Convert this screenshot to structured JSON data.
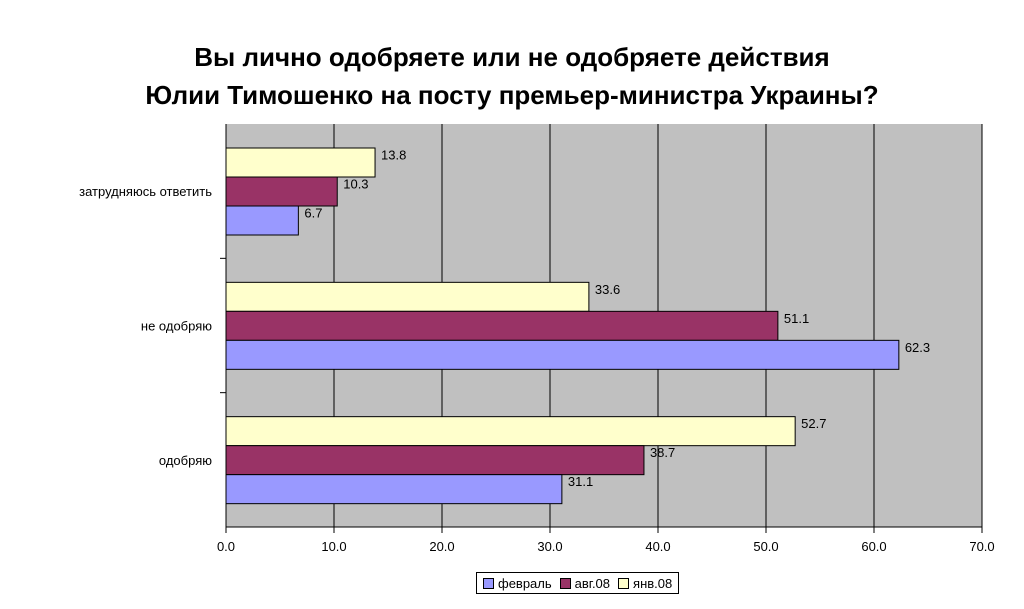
{
  "chart_data": {
    "type": "bar",
    "orientation": "horizontal",
    "title_lines": [
      "Вы лично одобряете или не одобряете действия",
      "Юлии Тимошенко на посту премьер-министра Украины?"
    ],
    "categories": [
      "затрудняюсь ответить",
      "не одобряю",
      "одобряю"
    ],
    "series": [
      {
        "name": "янв.08",
        "color": "#ffffcc",
        "values": [
          13.8,
          33.6,
          52.7
        ],
        "labels": [
          "13.8",
          "33.6",
          "52.7"
        ]
      },
      {
        "name": "авг.08",
        "color": "#993366",
        "values": [
          10.3,
          51.1,
          38.7
        ],
        "labels": [
          "10.3",
          "51.1",
          "38.7"
        ]
      },
      {
        "name": "февраль",
        "color": "#9999ff",
        "values": [
          6.7,
          62.3,
          31.1
        ],
        "labels": [
          "6.7",
          "62.3",
          "31.1"
        ]
      }
    ],
    "xlim": [
      0,
      70
    ],
    "xticks": [
      0,
      10,
      20,
      30,
      40,
      50,
      60,
      70
    ],
    "xtick_labels": [
      "0.0",
      "10.0",
      "20.0",
      "30.0",
      "40.0",
      "50.0",
      "60.0",
      "70.0"
    ],
    "plot_background": "#c0c0c0",
    "grid": true,
    "legend_position": "bottom",
    "legend_order": [
      "февраль",
      "авг.08",
      "янв.08"
    ]
  }
}
